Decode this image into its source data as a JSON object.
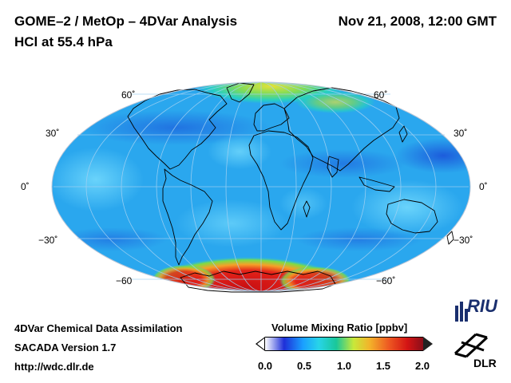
{
  "header": {
    "title_line1": "GOME–2 / MetOp – 4DVar Analysis",
    "title_line2": "HCl at 55.4 hPa",
    "datetime": "Nov 21, 2008, 12:00 GMT"
  },
  "map": {
    "projection": "Mollweide",
    "latitude_labels_left": [
      "60˚",
      "30˚",
      "0˚",
      "−30˚",
      "−60"
    ],
    "latitude_labels_right": [
      "60˚",
      "30˚",
      "0˚",
      "−30˚",
      "−60˚"
    ],
    "colors": {
      "background_field": "#2aa7ee",
      "high_values": "#d41414",
      "coastline": "#000000",
      "graticule": "#9fd0f2"
    }
  },
  "colorbar": {
    "title": "Volume Mixing Ratio [ppbv]",
    "ticks": [
      "0.0",
      "0.5",
      "1.0",
      "1.5",
      "2.0"
    ],
    "range": [
      0.0,
      2.0
    ]
  },
  "footer": {
    "line1": "4DVar Chemical Data Assimilation",
    "line2": "SACADA Version 1.7",
    "line3": "http://wdc.dlr.de"
  },
  "logos": {
    "riu_text": "RIU",
    "dlr_text": "DLR"
  }
}
